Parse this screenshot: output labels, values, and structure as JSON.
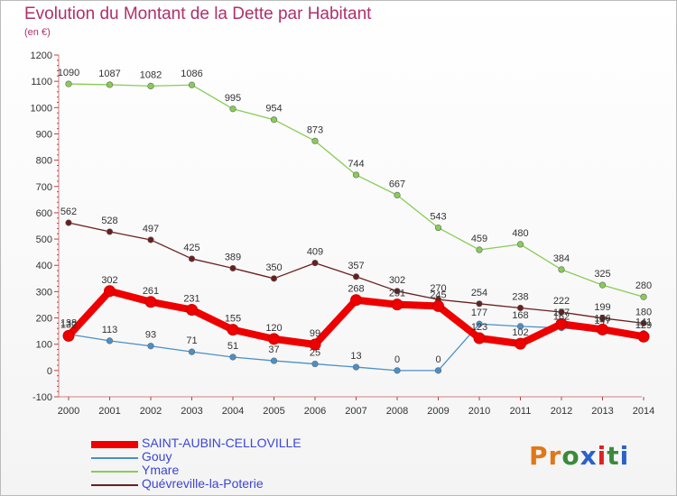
{
  "title": "Evolution du Montant de la Dette par Habitant",
  "subtitle": "(en €)",
  "logo": "Proxiti",
  "chart_data": {
    "type": "line",
    "categories": [
      "2000",
      "2001",
      "2002",
      "2003",
      "2004",
      "2005",
      "2006",
      "2007",
      "2008",
      "2009",
      "2010",
      "2011",
      "2012",
      "2013",
      "2014"
    ],
    "ylim": [
      -100,
      1200
    ],
    "yticks": [
      "-100",
      "0",
      "100",
      "200",
      "300",
      "400",
      "500",
      "600",
      "700",
      "800",
      "900",
      "1000",
      "1100",
      "1200"
    ],
    "grid": false,
    "legend_position": "bottom",
    "series": [
      {
        "name": "SAINT-AUBIN-CELLOVILLE",
        "color": "#ee0000",
        "values": [
          132,
          302,
          261,
          231,
          155,
          120,
          99,
          268,
          251,
          245,
          123,
          102,
          177,
          156,
          129
        ]
      },
      {
        "name": "Gouy",
        "color": "#4a90c8",
        "values": [
          138,
          113,
          93,
          71,
          51,
          37,
          25,
          13,
          0,
          0,
          177,
          168,
          162,
          147,
          141
        ]
      },
      {
        "name": "Ymare",
        "color": "#88cc55",
        "values": [
          1090,
          1087,
          1082,
          1086,
          995,
          954,
          873,
          744,
          667,
          543,
          459,
          480,
          384,
          325,
          280
        ]
      },
      {
        "name": "Quévreville-la-Poterie",
        "color": "#6b1e1e",
        "values": [
          562,
          528,
          497,
          425,
          389,
          350,
          409,
          357,
          302,
          270,
          254,
          238,
          222,
          199,
          180
        ]
      }
    ]
  }
}
